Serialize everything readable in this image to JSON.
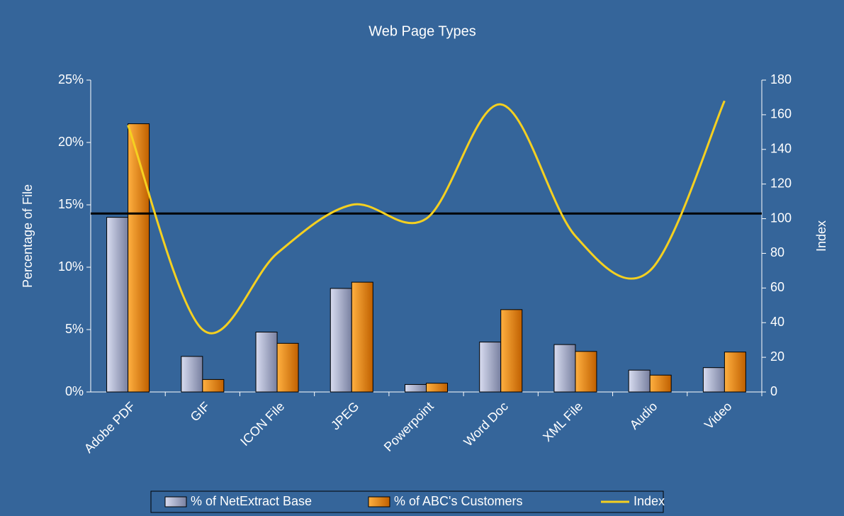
{
  "chart_data": {
    "type": "bar",
    "title": "Web Page Types",
    "ylabel": "Percentage of File",
    "y2label": "Index",
    "categories": [
      "Adobe PDF",
      "GIF",
      "ICON File",
      "JPEG",
      "Powerpoint",
      "Word Doc",
      "XML File",
      "Audio",
      "Video"
    ],
    "series": [
      {
        "name": "% of NetExtract Base",
        "type": "bar",
        "color": "#aab0d0",
        "values": [
          14.0,
          2.85,
          4.8,
          8.3,
          0.6,
          4.0,
          3.8,
          1.75,
          1.95
        ]
      },
      {
        "name": "% of ABC's Customers",
        "type": "bar",
        "color": "#f08c00",
        "values": [
          21.5,
          1.0,
          3.9,
          8.8,
          0.7,
          6.6,
          3.25,
          1.35,
          3.2
        ]
      },
      {
        "name": "Index",
        "type": "line",
        "axis": "y2",
        "color": "#f5d020",
        "values": [
          154,
          36,
          80,
          108,
          100,
          166,
          90,
          70,
          168
        ]
      }
    ],
    "reference_line": {
      "value": 103,
      "axis": "y2",
      "color": "#000000"
    },
    "ylim": [
      0,
      25
    ],
    "yticks": [
      {
        "value": 0,
        "label": "0%"
      },
      {
        "value": 5,
        "label": "5%"
      },
      {
        "value": 10,
        "label": "10%"
      },
      {
        "value": 15,
        "label": "15%"
      },
      {
        "value": 20,
        "label": "20%"
      },
      {
        "value": 25,
        "label": "25%"
      }
    ],
    "y2lim": [
      0,
      180
    ],
    "y2ticks": [
      0,
      20,
      40,
      60,
      80,
      100,
      120,
      140,
      160,
      180
    ],
    "legend": "bottom"
  }
}
